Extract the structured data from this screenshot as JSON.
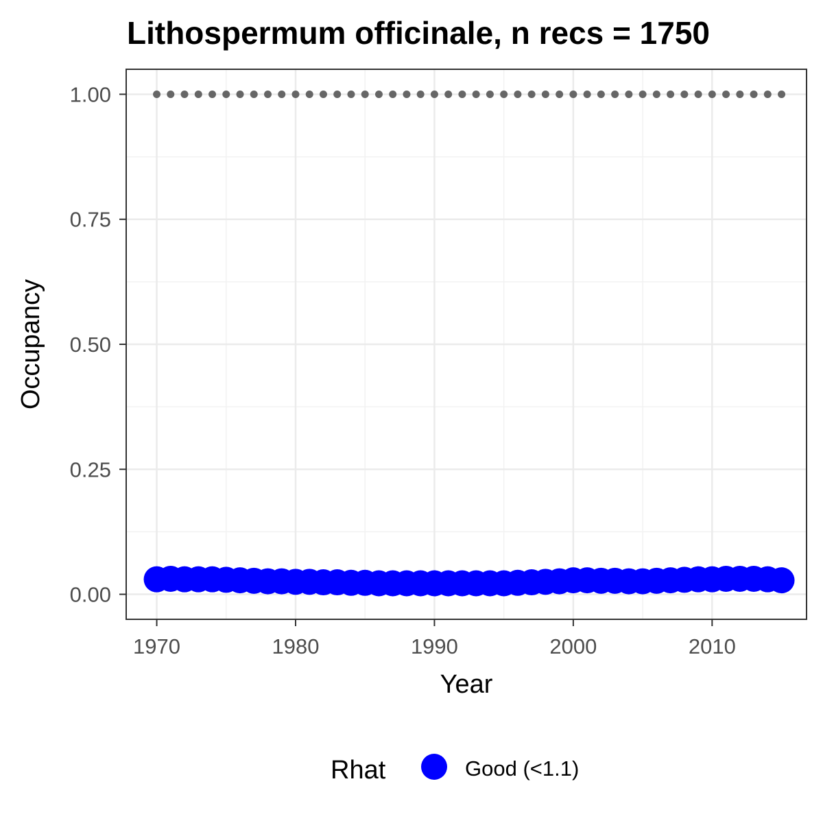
{
  "chart_data": {
    "type": "scatter",
    "title": "Lithospermum officinale, n recs = 1750",
    "xlabel": "Year",
    "ylabel": "Occupancy",
    "xlim": [
      1967.8,
      2016.8
    ],
    "ylim": [
      -0.05,
      1.05
    ],
    "x_ticks": [
      1970,
      1980,
      1990,
      2000,
      2010
    ],
    "x_tick_labels": [
      "1970",
      "1980",
      "1990",
      "2000",
      "2010"
    ],
    "y_ticks": [
      0,
      0.25,
      0.5,
      0.75,
      1.0
    ],
    "y_tick_labels": [
      "0.00",
      "0.25",
      "0.50",
      "0.75",
      "1.00"
    ],
    "grid": true,
    "legend": {
      "title": "Rhat",
      "position": "bottom",
      "entries": [
        {
          "label": "Good (<1.1)",
          "color": "#0000ff"
        }
      ]
    },
    "series": [
      {
        "name": "Good (<1.1)",
        "color": "#0000ff",
        "marker": "large-circle",
        "x": [
          1970,
          1971,
          1972,
          1973,
          1974,
          1975,
          1976,
          1977,
          1978,
          1979,
          1980,
          1981,
          1982,
          1983,
          1984,
          1985,
          1986,
          1987,
          1988,
          1989,
          1990,
          1991,
          1992,
          1993,
          1994,
          1995,
          1996,
          1997,
          1998,
          1999,
          2000,
          2001,
          2002,
          2003,
          2004,
          2005,
          2006,
          2007,
          2008,
          2009,
          2010,
          2011,
          2012,
          2013,
          2014,
          2015
        ],
        "y": [
          0.03,
          0.031,
          0.03,
          0.03,
          0.03,
          0.029,
          0.028,
          0.027,
          0.026,
          0.026,
          0.025,
          0.025,
          0.024,
          0.024,
          0.023,
          0.023,
          0.022,
          0.022,
          0.022,
          0.022,
          0.022,
          0.022,
          0.022,
          0.022,
          0.022,
          0.022,
          0.023,
          0.024,
          0.025,
          0.026,
          0.028,
          0.028,
          0.027,
          0.027,
          0.026,
          0.026,
          0.027,
          0.028,
          0.029,
          0.03,
          0.03,
          0.031,
          0.031,
          0.031,
          0.03,
          0.028
        ]
      },
      {
        "name": "",
        "color": "#666666",
        "marker": "small-dot",
        "x": [
          1970,
          1971,
          1972,
          1973,
          1974,
          1975,
          1976,
          1977,
          1978,
          1979,
          1980,
          1981,
          1982,
          1983,
          1984,
          1985,
          1986,
          1987,
          1988,
          1989,
          1990,
          1991,
          1992,
          1993,
          1994,
          1995,
          1996,
          1997,
          1998,
          1999,
          2000,
          2001,
          2002,
          2003,
          2004,
          2005,
          2006,
          2007,
          2008,
          2009,
          2010,
          2011,
          2012,
          2013,
          2014,
          2015
        ],
        "y": [
          1,
          1,
          1,
          1,
          1,
          1,
          1,
          1,
          1,
          1,
          1,
          1,
          1,
          1,
          1,
          1,
          1,
          1,
          1,
          1,
          1,
          1,
          1,
          1,
          1,
          1,
          1,
          1,
          1,
          1,
          1,
          1,
          1,
          1,
          1,
          1,
          1,
          1,
          1,
          1,
          1,
          1,
          1,
          1,
          1,
          1
        ]
      }
    ]
  }
}
